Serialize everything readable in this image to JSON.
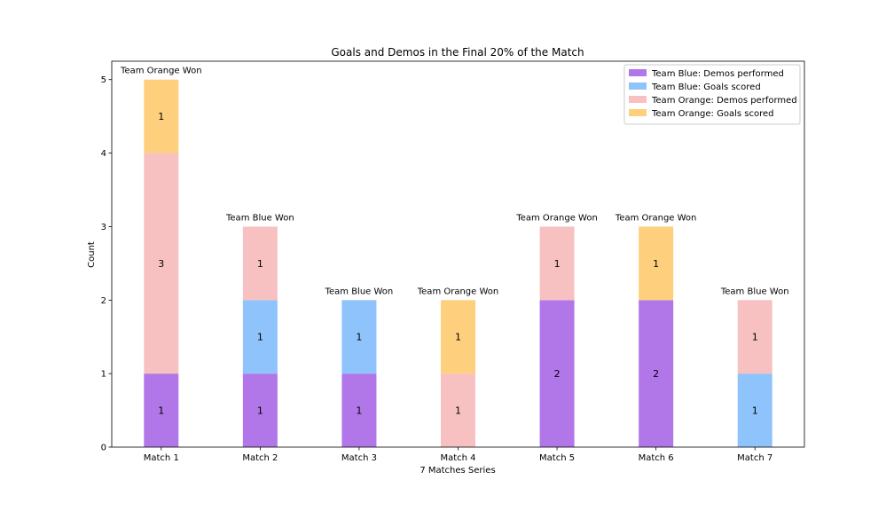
{
  "chart_data": {
    "type": "bar",
    "stacked": true,
    "title": "Goals and Demos in the Final 20% of the Match",
    "xlabel": "7 Matches Series",
    "ylabel": "Count",
    "ylim": [
      0,
      5.25
    ],
    "yticks": [
      0,
      1,
      2,
      3,
      4,
      5
    ],
    "categories": [
      "Match 1",
      "Match 2",
      "Match 3",
      "Match 4",
      "Match 5",
      "Match 6",
      "Match 7"
    ],
    "series": [
      {
        "name": "Team Blue: Demos performed",
        "color": "#b176e8",
        "values": [
          1,
          1,
          1,
          0,
          2,
          2,
          0
        ]
      },
      {
        "name": "Team Blue: Goals scored",
        "color": "#8ec3fb",
        "values": [
          0,
          1,
          1,
          0,
          0,
          0,
          1
        ]
      },
      {
        "name": "Team Orange: Demos performed",
        "color": "#f7c1c2",
        "values": [
          3,
          1,
          0,
          1,
          1,
          0,
          1
        ]
      },
      {
        "name": "Team Orange: Goals scored",
        "color": "#fed07d",
        "values": [
          1,
          0,
          0,
          1,
          0,
          1,
          0
        ]
      }
    ],
    "annotations": [
      "Team Orange Won",
      "Team Blue Won",
      "Team Blue Won",
      "Team Orange Won",
      "Team Orange Won",
      "Team Orange Won",
      "Team Blue Won"
    ],
    "legend_position": "top-right",
    "grid": false
  }
}
